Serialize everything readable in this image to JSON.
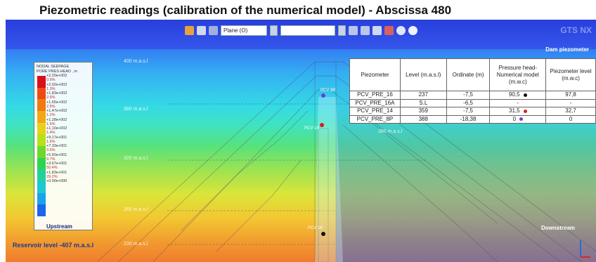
{
  "title": "Piezometric readings (calibration of the numerical model) - Abscissa 480",
  "toolbar": {
    "select_plane": "Plane (O)",
    "select_blank": "",
    "logo": "GTS NX",
    "icons": [
      "save-icon",
      "transform-icon",
      "grid-icon",
      "view-icon",
      "zoom-icon",
      "light-icon",
      "render-icon",
      "settings-icon",
      "help-icon"
    ]
  },
  "legend": {
    "title_line1": "NODAL SEEPAGE",
    "title_line2": "PORE PRES.HEAD , m",
    "rows": [
      {
        "value": "+2.20e+002",
        "pct": "0.6%"
      },
      {
        "value": "+2.02e+002",
        "pct": "1.3%"
      },
      {
        "value": "+1.83e+002",
        "pct": "2.6%"
      },
      {
        "value": "+1.65e+002",
        "pct": "2.5%"
      },
      {
        "value": "+1.47e+002",
        "pct": "1.2%"
      },
      {
        "value": "+1.28e+002",
        "pct": "1.5%"
      },
      {
        "value": "+1.10e+002",
        "pct": "1.4%"
      },
      {
        "value": "+9.17e+001",
        "pct": "1.6%"
      },
      {
        "value": "+7.33e+001",
        "pct": "3.6%"
      },
      {
        "value": "+5.50e+001",
        "pct": "9.7%"
      },
      {
        "value": "+3.67e+001",
        "pct": "50.4%"
      },
      {
        "value": "+1.83e+001",
        "pct": "29.2%"
      },
      {
        "value": "+0.00e+000",
        "pct": ""
      }
    ],
    "colors": [
      "#d8101a",
      "#f04a14",
      "#f07a10",
      "#f2a814",
      "#e6d218",
      "#b6e01a",
      "#6ed82a",
      "#2fd44e",
      "#22d09a",
      "#1cc8d2",
      "#1aa2ea",
      "#1a66ee",
      "#1a2ad8"
    ]
  },
  "elevations": {
    "e400": "400 m.a.s.l",
    "e380": "380 m.a.s.l",
    "e320": "320 m.a.s.l",
    "e265": "265 m.a.s.l",
    "e230": "230 m.a.s.l",
    "e380_right": "380 m.a.s.l"
  },
  "table": {
    "header": {
      "piezometer": "Piezometer",
      "level": "Level (m.a.s.l)",
      "ordinate": "Ordinate (m)",
      "pressure": "Pressure head-Numerical model (m.w.c)",
      "piezo_level": "Piezometer level (m.w.c)"
    },
    "caption": "Dam piezometer",
    "rows": [
      {
        "piezometer": "PCV_PRE_16",
        "level": "237",
        "ordinate": "-7,5",
        "pressure": "90,5",
        "dot": "#111111",
        "piezo_level": "97,8"
      },
      {
        "piezometer": "PCV_PRE_16A",
        "level": "S.L",
        "ordinate": "-6,5",
        "pressure": "-",
        "dot": "",
        "piezo_level": "-"
      },
      {
        "piezometer": "PCV_PRE_14",
        "level": "359",
        "ordinate": "-7,5",
        "pressure": "31,5",
        "dot": "#e01a1a",
        "piezo_level": "32,7"
      },
      {
        "piezometer": "PCV_PRE_8P",
        "level": "388",
        "ordinate": "-18,38",
        "pressure": "0",
        "dot": "#7a3ad0",
        "piezo_level": "0"
      }
    ]
  },
  "upstream_label": "Upstream",
  "downstream_label": "Downstream",
  "reservoir_label": "Reservoir level -407 m.a.s.l",
  "point_labels": {
    "p16": "PCV 16",
    "p14": "PCV 14",
    "p8": "PCV 8P"
  }
}
